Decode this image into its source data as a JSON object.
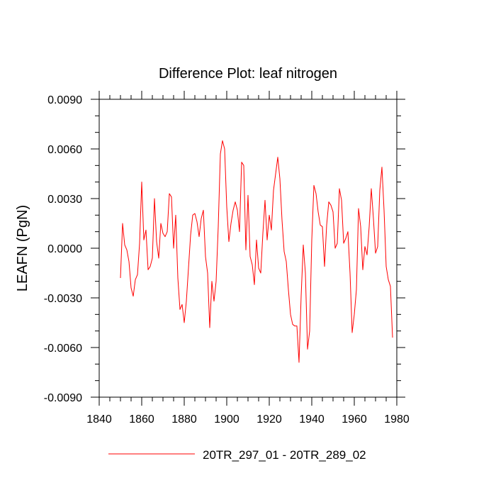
{
  "chart_data": {
    "type": "line",
    "title": "Difference Plot: leaf nitrogen",
    "xlabel": "",
    "ylabel": "LEAFN  (PgN)",
    "xlim": [
      1840,
      1980
    ],
    "ylim": [
      -0.009,
      0.009
    ],
    "x_ticks": [
      1840,
      1860,
      1880,
      1900,
      1920,
      1940,
      1960,
      1980
    ],
    "x_tick_labels": [
      "1840",
      "1860",
      "1880",
      "1900",
      "1920",
      "1940",
      "1960",
      "1980"
    ],
    "y_ticks": [
      -0.009,
      -0.006,
      -0.003,
      0.0,
      0.003,
      0.006,
      0.009
    ],
    "y_tick_labels": [
      "-0.0090",
      "-0.0060",
      "-0.0030",
      "0.0000",
      "0.0030",
      "0.0060",
      "0.0090"
    ],
    "grid": false,
    "legend_position": "bottom",
    "series": [
      {
        "name": "20TR_297_01 - 20TR_289_02",
        "color": "#ff0000",
        "x": [
          1850,
          1851,
          1852,
          1853,
          1854,
          1855,
          1856,
          1857,
          1858,
          1859,
          1860,
          1861,
          1862,
          1863,
          1864,
          1865,
          1866,
          1867,
          1868,
          1869,
          1870,
          1871,
          1872,
          1873,
          1874,
          1875,
          1876,
          1877,
          1878,
          1879,
          1880,
          1881,
          1882,
          1883,
          1884,
          1885,
          1886,
          1887,
          1888,
          1889,
          1890,
          1891,
          1892,
          1893,
          1894,
          1895,
          1896,
          1897,
          1898,
          1899,
          1900,
          1901,
          1902,
          1903,
          1904,
          1905,
          1906,
          1907,
          1908,
          1909,
          1910,
          1911,
          1912,
          1913,
          1914,
          1915,
          1916,
          1917,
          1918,
          1919,
          1920,
          1921,
          1922,
          1923,
          1924,
          1925,
          1926,
          1927,
          1928,
          1929,
          1930,
          1931,
          1932,
          1933,
          1934,
          1935,
          1936,
          1937,
          1938,
          1939,
          1940,
          1941,
          1942,
          1943,
          1944,
          1945,
          1946,
          1947,
          1948,
          1949,
          1950,
          1951,
          1952,
          1953,
          1954,
          1955,
          1956,
          1957,
          1958,
          1959,
          1960,
          1961,
          1962,
          1963,
          1964,
          1965,
          1966,
          1967,
          1968,
          1969,
          1970,
          1971,
          1972,
          1973,
          1974,
          1975,
          1976,
          1977,
          1978
        ],
        "values": [
          -0.0018,
          0.0015,
          0.0002,
          -0.0001,
          -0.0008,
          -0.0024,
          -0.0029,
          -0.0019,
          -0.0016,
          0.0003,
          0.004,
          0.0005,
          0.0011,
          -0.0013,
          -0.0011,
          -0.0006,
          0.003,
          0.0004,
          -0.0006,
          0.0015,
          0.0009,
          0.0007,
          0.001,
          0.0033,
          0.0031,
          0.0,
          0.002,
          -0.0018,
          -0.0037,
          -0.0034,
          -0.0045,
          -0.0032,
          -0.0012,
          0.0008,
          0.002,
          0.0021,
          0.0016,
          0.0007,
          0.0018,
          0.0023,
          -0.0005,
          -0.0015,
          -0.0048,
          -0.002,
          -0.0032,
          -0.002,
          0.0013,
          0.0057,
          0.0065,
          0.006,
          0.0025,
          0.0004,
          0.0015,
          0.0023,
          0.0028,
          0.0023,
          0.001,
          0.0052,
          0.005,
          -0.0001,
          0.0032,
          -0.0005,
          -0.001,
          -0.0022,
          0.0005,
          -0.0012,
          -0.0015,
          0.0009,
          0.0029,
          0.0005,
          0.002,
          0.0011,
          0.0035,
          0.0045,
          0.0055,
          0.0042,
          0.0017,
          -0.0002,
          -0.0008,
          -0.0025,
          -0.004,
          -0.0046,
          -0.0047,
          -0.0047,
          -0.0069,
          -0.0029,
          0.0002,
          -0.0015,
          -0.0061,
          -0.005,
          0.0005,
          0.0038,
          0.0033,
          0.0022,
          0.0014,
          0.0013,
          -0.0011,
          0.0014,
          0.0028,
          0.0026,
          0.0022,
          0.0,
          0.0003,
          0.0036,
          0.0029,
          0.0003,
          0.0006,
          0.001,
          -0.0015,
          -0.0051,
          -0.004,
          -0.0025,
          0.0024,
          0.0013,
          -0.0013,
          0.0001,
          -0.0004,
          0.0013,
          0.0036,
          0.0018,
          -0.0003,
          0.0001,
          0.0035,
          0.0049,
          0.0023,
          -0.0011,
          -0.0019,
          -0.0023,
          -0.0054
        ]
      }
    ]
  }
}
